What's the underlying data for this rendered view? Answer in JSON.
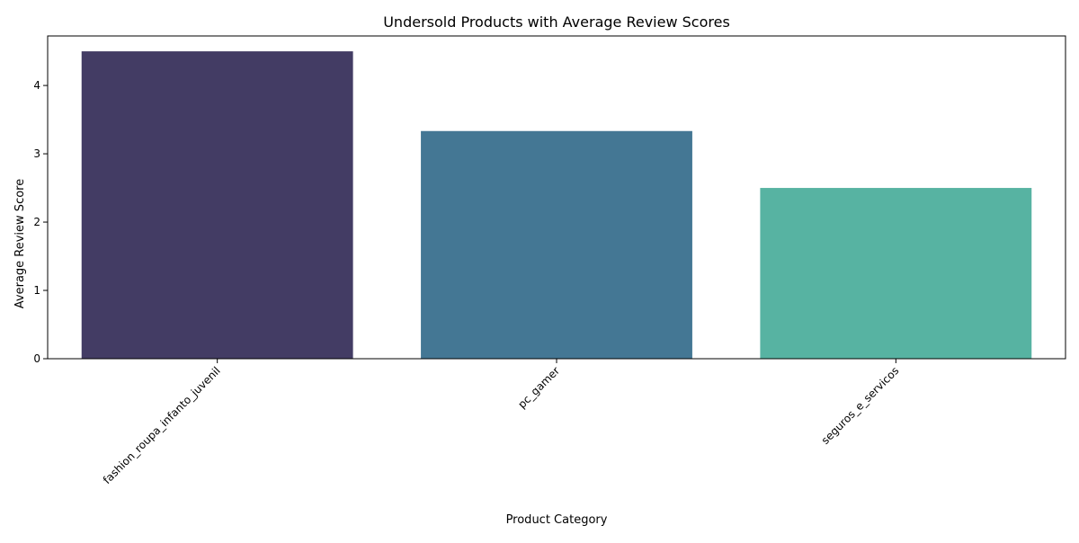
{
  "chart_data": {
    "type": "bar",
    "title": "Undersold Products with Average Review Scores",
    "xlabel": "Product Category",
    "ylabel": "Average Review Score",
    "categories": [
      "fashion_roupa_infanto_juvenil",
      "pc_gamer",
      "seguros_e_servicos"
    ],
    "values": [
      4.5,
      3.333,
      2.5
    ],
    "colors": [
      "#433c64",
      "#447794",
      "#57b3a2"
    ],
    "ylim": [
      0,
      4.725
    ],
    "yticks": [
      0,
      1,
      2,
      3,
      4
    ],
    "grid": false,
    "legend": "none"
  }
}
